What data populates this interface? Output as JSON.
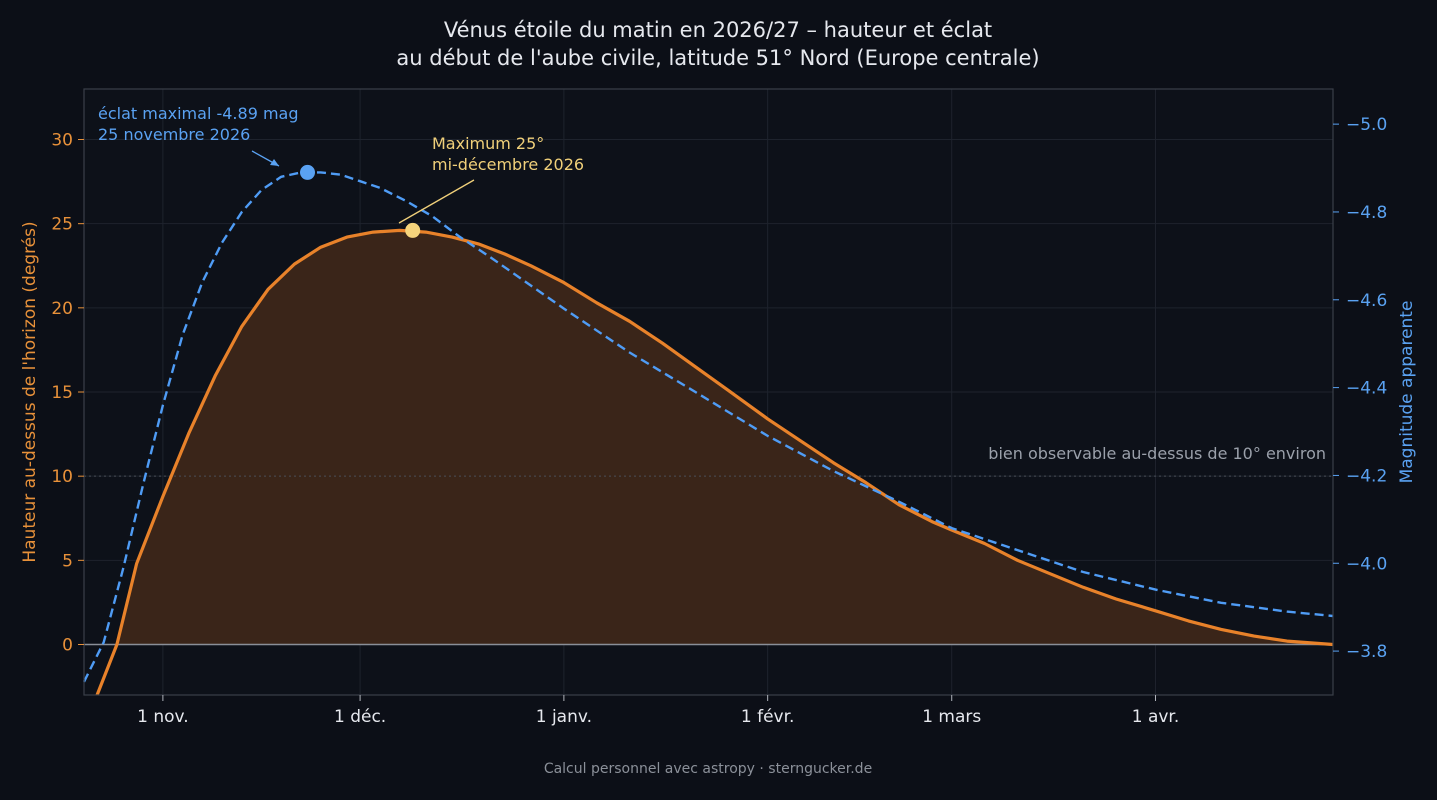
{
  "chart_data": {
    "type": "line",
    "title_line1": "Vénus étoile du matin en 2026/27 – hauteur et éclat",
    "title_line2": "au début de l'aube civile, latitude 51° Nord (Europe centrale)",
    "ylabel_left": "Hauteur au-dessus de l'horizon (degrés)",
    "ylabel_right": "Magnitude apparente",
    "ylim_left": [
      -3,
      33
    ],
    "ylim_right": [
      -3.7,
      -5.08
    ],
    "right_axis_inverted": true,
    "xlim": [
      "2026-10-20",
      "2027-04-28"
    ],
    "grid": true,
    "x_ticks": [
      {
        "date": "2026-11-01",
        "label": "1 nov."
      },
      {
        "date": "2026-12-01",
        "label": "1 déc."
      },
      {
        "date": "2027-01-01",
        "label": "1 janv."
      },
      {
        "date": "2027-02-01",
        "label": "1 févr."
      },
      {
        "date": "2027-03-01",
        "label": "1 mars"
      },
      {
        "date": "2027-04-01",
        "label": "1 avr."
      }
    ],
    "y_ticks_left": [
      0,
      5,
      10,
      15,
      20,
      25,
      30
    ],
    "y_ticks_right": [
      -5.0,
      -4.8,
      -4.6,
      -4.4,
      -4.2,
      -4.0,
      -3.8
    ],
    "y_tick_labels_right": [
      "−5.0",
      "−4.8",
      "−4.6",
      "−4.4",
      "−4.2",
      "−4.0",
      "−3.8"
    ],
    "threshold": {
      "value": 10,
      "label": "bien observable au-dessus de 10° environ"
    },
    "series": [
      {
        "axis": "left",
        "color": "#e8822a",
        "fill": "#3a2519",
        "points": [
          [
            "2026-10-22",
            -3.6
          ],
          [
            "2026-10-25",
            0.0
          ],
          [
            "2026-10-28",
            4.8
          ],
          [
            "2026-11-01",
            8.8
          ],
          [
            "2026-11-05",
            12.6
          ],
          [
            "2026-11-09",
            16.0
          ],
          [
            "2026-11-13",
            18.9
          ],
          [
            "2026-11-17",
            21.1
          ],
          [
            "2026-11-21",
            22.6
          ],
          [
            "2026-11-25",
            23.6
          ],
          [
            "2026-11-29",
            24.2
          ],
          [
            "2026-12-03",
            24.5
          ],
          [
            "2026-12-07",
            24.6
          ],
          [
            "2026-12-11",
            24.5
          ],
          [
            "2026-12-15",
            24.2
          ],
          [
            "2026-12-19",
            23.8
          ],
          [
            "2026-12-23",
            23.2
          ],
          [
            "2026-12-27",
            22.5
          ],
          [
            "2027-01-01",
            21.5
          ],
          [
            "2027-01-06",
            20.3
          ],
          [
            "2027-01-11",
            19.2
          ],
          [
            "2027-01-16",
            17.9
          ],
          [
            "2027-01-21",
            16.5
          ],
          [
            "2027-01-26",
            15.1
          ],
          [
            "2027-02-01",
            13.4
          ],
          [
            "2027-02-06",
            12.1
          ],
          [
            "2027-02-11",
            10.8
          ],
          [
            "2027-02-16",
            9.6
          ],
          [
            "2027-02-21",
            8.3
          ],
          [
            "2027-02-26",
            7.3
          ],
          [
            "2027-03-01",
            6.8
          ],
          [
            "2027-03-06",
            6.0
          ],
          [
            "2027-03-11",
            5.0
          ],
          [
            "2027-03-16",
            4.2
          ],
          [
            "2027-03-21",
            3.4
          ],
          [
            "2027-03-26",
            2.7
          ],
          [
            "2027-04-01",
            2.0
          ],
          [
            "2027-04-06",
            1.4
          ],
          [
            "2027-04-11",
            0.9
          ],
          [
            "2027-04-16",
            0.5
          ],
          [
            "2027-04-21",
            0.2
          ],
          [
            "2027-04-28",
            0.0
          ]
        ]
      },
      {
        "axis": "right",
        "color": "#4f9cf5",
        "dashed": true,
        "points": [
          [
            "2026-10-20",
            -3.73
          ],
          [
            "2026-10-23",
            -3.82
          ],
          [
            "2026-10-26",
            -3.99
          ],
          [
            "2026-10-29",
            -4.18
          ],
          [
            "2026-11-01",
            -4.36
          ],
          [
            "2026-11-04",
            -4.52
          ],
          [
            "2026-11-07",
            -4.64
          ],
          [
            "2026-11-10",
            -4.73
          ],
          [
            "2026-11-13",
            -4.8
          ],
          [
            "2026-11-16",
            -4.85
          ],
          [
            "2026-11-19",
            -4.88
          ],
          [
            "2026-11-22",
            -4.89
          ],
          [
            "2026-11-25",
            -4.89
          ],
          [
            "2026-11-28",
            -4.885
          ],
          [
            "2026-12-01",
            -4.87
          ],
          [
            "2026-12-04",
            -4.855
          ],
          [
            "2026-12-08",
            -4.825
          ],
          [
            "2026-12-12",
            -4.79
          ],
          [
            "2026-12-16",
            -4.745
          ],
          [
            "2026-12-21",
            -4.695
          ],
          [
            "2027-01-01",
            -4.58
          ],
          [
            "2027-01-11",
            -4.48
          ],
          [
            "2027-01-21",
            -4.39
          ],
          [
            "2027-02-01",
            -4.29
          ],
          [
            "2027-02-11",
            -4.21
          ],
          [
            "2027-02-21",
            -4.14
          ],
          [
            "2027-03-01",
            -4.08
          ],
          [
            "2027-03-11",
            -4.03
          ],
          [
            "2027-03-21",
            -3.98
          ],
          [
            "2027-04-01",
            -3.94
          ],
          [
            "2027-04-11",
            -3.91
          ],
          [
            "2027-04-21",
            -3.89
          ],
          [
            "2027-04-28",
            -3.88
          ]
        ]
      }
    ],
    "markers": [
      {
        "axis": "right",
        "date": "2026-11-23",
        "value": -4.89,
        "color": "#5aa2f2"
      },
      {
        "axis": "left",
        "date": "2026-12-09",
        "value": 24.6,
        "color": "#f5d47c"
      }
    ],
    "annotations": {
      "brightest_line1": "éclat maximal -4.89 mag",
      "brightest_line2": "25 novembre 2026",
      "max_line1": "Maximum 25°",
      "max_line2": "mi-décembre 2026"
    },
    "footer": "Calcul personnel avec astropy · sterngucker.de"
  }
}
